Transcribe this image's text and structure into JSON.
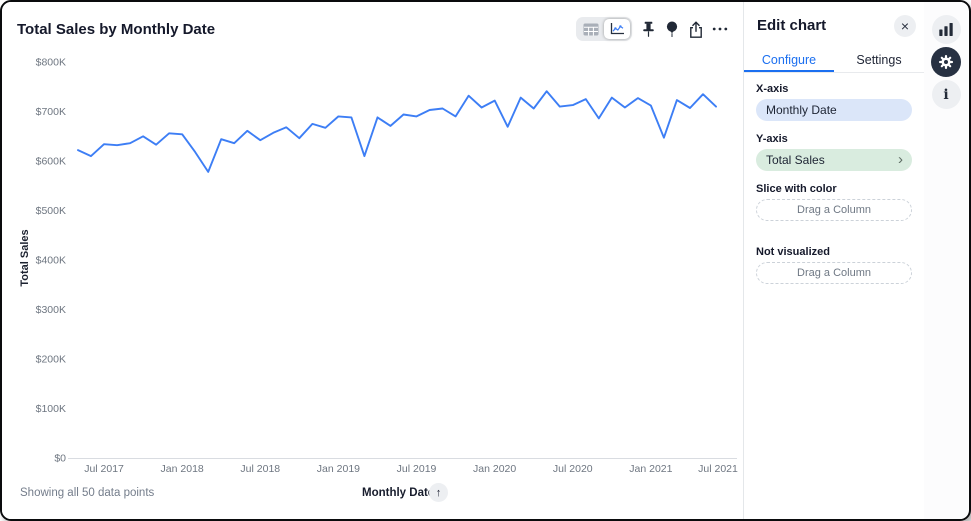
{
  "colors": {
    "accent_blue": "#1B6FF0",
    "line_blue": "#3D7EF5",
    "pill_blue_bg": "#DBE6F9",
    "pill_green_bg": "#D9ECDF",
    "rail_gear_bg": "#273142",
    "icon_dark": "#212936",
    "axis_text": "#6E7681"
  },
  "chart_header": {
    "title": "Total Sales by Monthly Date"
  },
  "toolbar": {
    "selected_view": "chart"
  },
  "chart_data": {
    "type": "line",
    "title": "Total Sales by Monthly Date",
    "xlabel": "Monthly Date",
    "ylabel": "Total Sales",
    "grid": false,
    "legend": false,
    "ylim": [
      0,
      800000
    ],
    "y_tick_labels": [
      "$0",
      "$100K",
      "$200K",
      "$300K",
      "$400K",
      "$500K",
      "$600K",
      "$700K",
      "$800K"
    ],
    "x_tick_labels": [
      "Jul 2017",
      "Jan 2018",
      "Jul 2018",
      "Jan 2019",
      "Jul 2019",
      "Jan 2020",
      "Jul 2020",
      "Jan 2021",
      "Jul 2021"
    ],
    "x": [
      "May 2017",
      "Jun 2017",
      "Jul 2017",
      "Aug 2017",
      "Sep 2017",
      "Oct 2017",
      "Nov 2017",
      "Dec 2017",
      "Jan 2018",
      "Feb 2018",
      "Mar 2018",
      "Apr 2018",
      "May 2018",
      "Jun 2018",
      "Jul 2018",
      "Aug 2018",
      "Sep 2018",
      "Oct 2018",
      "Nov 2018",
      "Dec 2018",
      "Jan 2019",
      "Feb 2019",
      "Mar 2019",
      "Apr 2019",
      "May 2019",
      "Jun 2019",
      "Jul 2019",
      "Aug 2019",
      "Sep 2019",
      "Oct 2019",
      "Nov 2019",
      "Dec 2019",
      "Jan 2020",
      "Feb 2020",
      "Mar 2020",
      "Apr 2020",
      "May 2020",
      "Jun 2020",
      "Jul 2020",
      "Aug 2020",
      "Sep 2020",
      "Oct 2020",
      "Nov 2020",
      "Dec 2020",
      "Jan 2021",
      "Feb 2021",
      "Mar 2021",
      "Apr 2021",
      "May 2021",
      "Jun 2021"
    ],
    "series": [
      {
        "name": "Total Sales",
        "values": [
          622000,
          610000,
          634000,
          632000,
          636000,
          650000,
          633000,
          656000,
          654000,
          618000,
          578000,
          644000,
          636000,
          661000,
          642000,
          657000,
          668000,
          646000,
          675000,
          667000,
          690000,
          688000,
          610000,
          688000,
          671000,
          694000,
          690000,
          703000,
          706000,
          690000,
          732000,
          708000,
          722000,
          669000,
          728000,
          706000,
          741000,
          710000,
          713000,
          725000,
          686000,
          728000,
          708000,
          727000,
          712000,
          647000,
          723000,
          707000,
          735000,
          710000
        ]
      }
    ]
  },
  "footer": {
    "status_text": "Showing all 50 data points",
    "x_axis_label": "Monthly Date",
    "sort_arrow_glyph": "↑"
  },
  "panel": {
    "title": "Edit chart",
    "close_glyph": "×",
    "tabs": [
      {
        "label": "Configure",
        "active": true
      },
      {
        "label": "Settings",
        "active": false
      }
    ],
    "x_axis": {
      "label": "X-axis",
      "value": "Monthly Date"
    },
    "y_axis": {
      "label": "Y-axis",
      "value": "Total Sales",
      "chevron_glyph": "›"
    },
    "slice": {
      "label": "Slice with color",
      "placeholder": "Drag a Column"
    },
    "not_visualized": {
      "label": "Not visualized",
      "placeholder": "Drag a Column"
    }
  },
  "rail": {
    "active": "settings",
    "info_glyph": "i"
  }
}
